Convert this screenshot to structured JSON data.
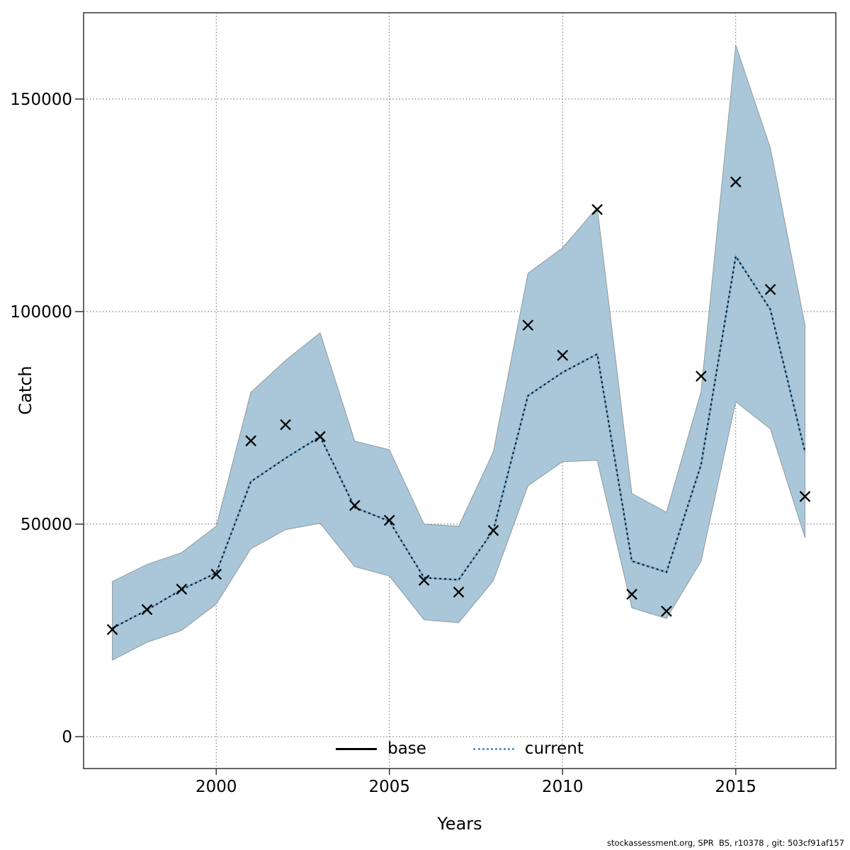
{
  "figure": {
    "footer": "stockassessment.org, SPR  BS, r10378 , git: 503cf91af157"
  },
  "chart_data": {
    "type": "line",
    "title": "",
    "xlabel": "Years",
    "ylabel": "Catch",
    "x": [
      1997,
      1998,
      1999,
      2000,
      2001,
      2002,
      2003,
      2004,
      2005,
      2006,
      2007,
      2008,
      2009,
      2010,
      2011,
      2012,
      2013,
      2014,
      2015,
      2016,
      2017
    ],
    "series": [
      {
        "name": "base",
        "line_style": "solid",
        "color": "#000000",
        "values": [
          25500,
          29800,
          34600,
          38500,
          60000,
          65500,
          70600,
          53900,
          50700,
          37400,
          36900,
          48500,
          80200,
          85700,
          90000,
          41300,
          38700,
          64000,
          113000,
          100500,
          67000
        ]
      },
      {
        "name": "current",
        "line_style": "dotted",
        "color": "#7db3d6",
        "values": [
          25500,
          29800,
          34600,
          38500,
          60000,
          65500,
          70600,
          53900,
          50700,
          37400,
          36900,
          48500,
          80200,
          85700,
          90000,
          41300,
          38700,
          64000,
          113000,
          100500,
          67000
        ],
        "band_lo": [
          18000,
          22200,
          25000,
          31200,
          44200,
          48700,
          50200,
          40000,
          37800,
          27500,
          26800,
          36700,
          59000,
          64700,
          65000,
          30300,
          27800,
          41300,
          78800,
          72400,
          46800
        ],
        "band_hi": [
          36500,
          40500,
          43300,
          49500,
          81000,
          88500,
          95000,
          69500,
          67500,
          50000,
          49500,
          67000,
          109000,
          115000,
          124500,
          57200,
          52800,
          81200,
          162700,
          138500,
          96800
        ]
      }
    ],
    "markers": {
      "shape": "x",
      "color": "#000000",
      "values": [
        25200,
        29900,
        34700,
        38200,
        69600,
        73400,
        70600,
        54400,
        50900,
        36800,
        34000,
        48500,
        96800,
        89700,
        124000,
        33500,
        29500,
        84800,
        130500,
        105200,
        56500
      ]
    },
    "x_ticks": [
      2000,
      2005,
      2010,
      2015
    ],
    "y_ticks": [
      0,
      50000,
      100000,
      150000
    ],
    "xlim": [
      1996.17,
      2017.89
    ],
    "ylim": [
      -7500,
      170300
    ],
    "grid": "dotted",
    "band_color": "#a9c7d8",
    "band_edge_color": "#8f9aa0",
    "dash_overlay_color": "#16161e",
    "legend_position": "bottom-center-inside"
  }
}
